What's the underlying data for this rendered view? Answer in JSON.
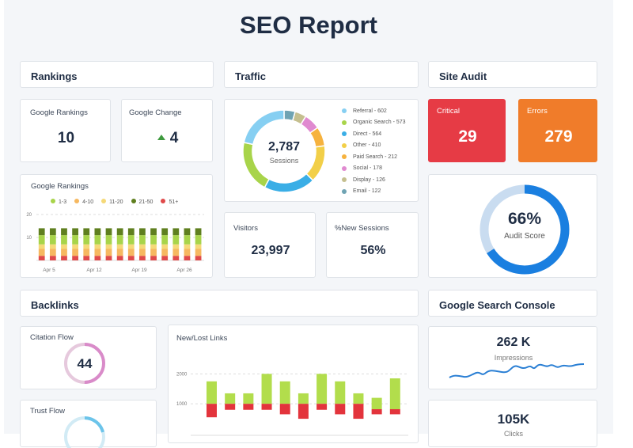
{
  "title": "SEO Report",
  "sections": {
    "rankings": "Rankings",
    "traffic": "Traffic",
    "site_audit": "Site Audit",
    "backlinks": "Backlinks",
    "gsc": "Google Search Console"
  },
  "rankings": {
    "google_rankings_label": "Google Rankings",
    "google_rankings_value": "10",
    "google_change_label": "Google Change",
    "google_change_value": "4",
    "google_change_icon": "triangle-up-icon",
    "google_change_color": "#3e9a3e"
  },
  "rankings_chart": {
    "type": "bar",
    "stacked": true,
    "title": "Google Rankings",
    "legend": [
      {
        "name": "1-3",
        "color": "#a8d44a"
      },
      {
        "name": "4-10",
        "color": "#f6b860"
      },
      {
        "name": "11-20",
        "color": "#f5d978"
      },
      {
        "name": "21-50",
        "color": "#5f7f1f"
      },
      {
        "name": "51+",
        "color": "#e04a4a"
      }
    ],
    "x_ticks": [
      "Apr 5",
      "Apr 12",
      "Apr 19",
      "Apr 26"
    ],
    "y_ticks": [
      "20",
      "10"
    ],
    "ylim": [
      0,
      20
    ],
    "grid": true,
    "bars": 15,
    "segments": [
      {
        "name": "51+",
        "value": 2
      },
      {
        "name": "4-10",
        "value": 3
      },
      {
        "name": "11-20",
        "value": 2
      },
      {
        "name": "1-3",
        "value": 4
      },
      {
        "name": "21-50",
        "value": 3
      }
    ]
  },
  "traffic": {
    "total": "2,787",
    "total_label": "Sessions",
    "chart_data": {
      "type": "pie",
      "donut": true,
      "slices": [
        {
          "name": "Referral",
          "value": 602,
          "color": "#86cff2",
          "label": "Referral - 602"
        },
        {
          "name": "Organic Search",
          "value": 573,
          "color": "#a8d44a",
          "label": "Organic Search - 573"
        },
        {
          "name": "Direct",
          "value": 564,
          "color": "#3aaee6",
          "label": "Direct - 564"
        },
        {
          "name": "Other",
          "value": 410,
          "color": "#f2cf48",
          "label": "Other - 410"
        },
        {
          "name": "Paid Search",
          "value": 212,
          "color": "#f6b23e",
          "label": "Paid Search - 212"
        },
        {
          "name": "Social",
          "value": 178,
          "color": "#e08ad0",
          "label": "Social - 178"
        },
        {
          "name": "Display",
          "value": 126,
          "color": "#c5bf8f",
          "label": "Display - 126"
        },
        {
          "name": "Email",
          "value": 122,
          "color": "#6fa3b3",
          "label": "Email - 122"
        }
      ]
    },
    "visitors_label": "Visitors",
    "visitors_value": "23,997",
    "new_sessions_label": "%New Sessions",
    "new_sessions_value": "56%"
  },
  "site_audit": {
    "critical_label": "Critical",
    "critical_value": "29",
    "critical_color": "#e63b45",
    "errors_label": "Errors",
    "errors_value": "279",
    "errors_color": "#f07c2a",
    "score": "66%",
    "score_fraction": 0.66,
    "score_label": "Audit Score",
    "score_color": "#1a7fe0"
  },
  "backlinks": {
    "citation_label": "Citation Flow",
    "citation_value": "44",
    "citation_fraction": 0.5,
    "citation_color": "#d98bc9",
    "trust_label": "Trust Flow",
    "trust_color": "#6cc4ea",
    "links_chart": {
      "type": "bar",
      "title": "New/Lost Links",
      "y_ticks": [
        "2000",
        "1000"
      ],
      "ylim": [
        0,
        2300
      ],
      "grid": true,
      "new": [
        [
          1000,
          1750
        ],
        [
          1000,
          1350
        ],
        [
          1000,
          1350
        ],
        [
          1000,
          2000
        ],
        [
          1000,
          1750
        ],
        [
          1000,
          1350
        ],
        [
          1000,
          2000
        ],
        [
          1000,
          1750
        ],
        [
          1000,
          1350
        ],
        [
          820,
          1200
        ],
        [
          820,
          1850
        ]
      ],
      "lost": [
        [
          550,
          1000
        ],
        [
          800,
          1000
        ],
        [
          800,
          1000
        ],
        [
          800,
          1000
        ],
        [
          650,
          1000
        ],
        [
          500,
          1000
        ],
        [
          800,
          1000
        ],
        [
          650,
          1000
        ],
        [
          500,
          1000
        ],
        [
          650,
          820
        ],
        [
          650,
          820
        ]
      ],
      "new_color": "#b2dd4c",
      "lost_color": "#e3343c"
    }
  },
  "gsc": {
    "impressions_value": "262 K",
    "impressions_label": "Impressions",
    "clicks_value": "105K",
    "clicks_label": "Clicks",
    "spark_color": "#2a7fd4"
  }
}
